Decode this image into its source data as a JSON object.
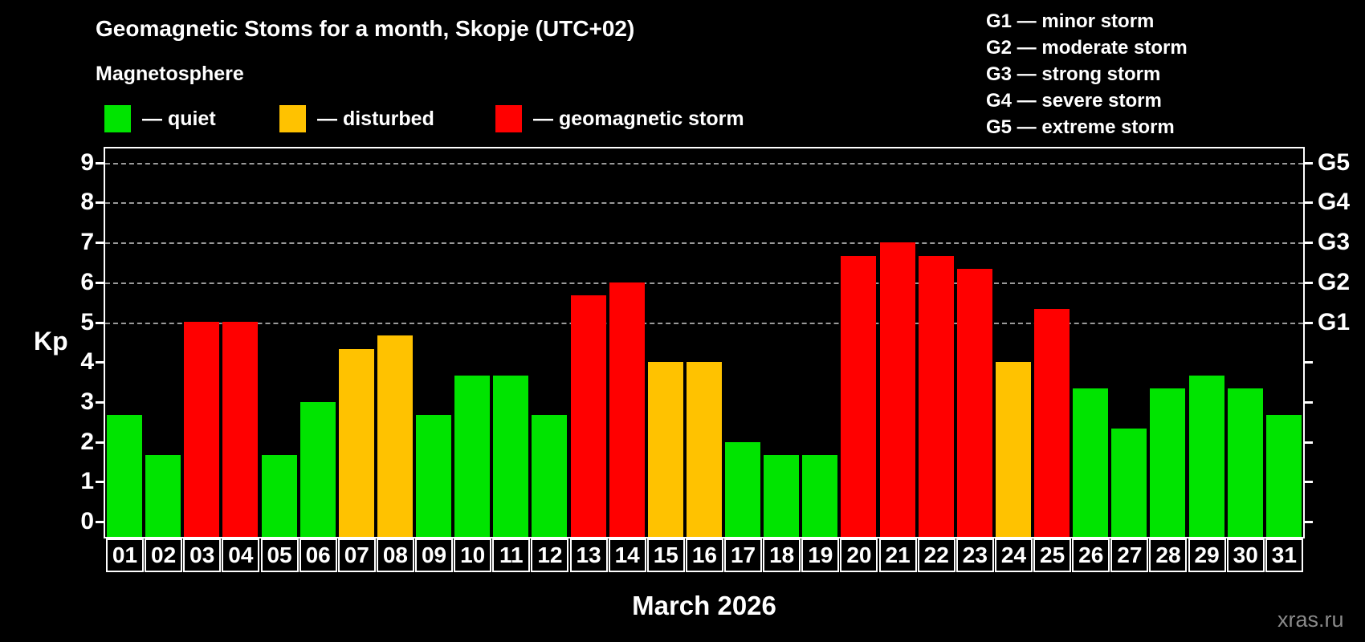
{
  "header": {
    "title": "Geomagnetic Stoms for a month, Skopje (UTC+02)",
    "subtitle": "Magnetosphere"
  },
  "legend": {
    "items": [
      {
        "name": "quiet",
        "label": "— quiet",
        "color": "#00e400"
      },
      {
        "name": "disturbed",
        "label": "— disturbed",
        "color": "#ffc200"
      },
      {
        "name": "storm",
        "label": "— geomagnetic storm",
        "color": "#ff0000"
      }
    ]
  },
  "g_scale_legend": {
    "items": [
      "G1 — minor storm",
      "G2 — moderate storm",
      "G3 — strong storm",
      "G4 — severe storm",
      "G5 — extreme storm"
    ]
  },
  "chart_data": {
    "type": "bar",
    "title": "Geomagnetic Stoms for a month, Skopje (UTC+02)",
    "xlabel": "March 2026",
    "ylabel": "Kp",
    "ylim": [
      0,
      9
    ],
    "grid": "horizontal dashed lines at Kp 5,6,7,8,9 only",
    "legend_position": "top-left",
    "categories": [
      "01",
      "02",
      "03",
      "04",
      "05",
      "06",
      "07",
      "08",
      "09",
      "10",
      "11",
      "12",
      "13",
      "14",
      "15",
      "16",
      "17",
      "18",
      "19",
      "20",
      "21",
      "22",
      "23",
      "24",
      "25",
      "26",
      "27",
      "28",
      "29",
      "30",
      "31"
    ],
    "values": [
      2.67,
      1.67,
      5.0,
      5.0,
      1.67,
      3.0,
      4.33,
      4.67,
      2.67,
      3.67,
      3.67,
      2.67,
      5.67,
      6.0,
      4.0,
      4.0,
      2.0,
      1.67,
      1.67,
      6.67,
      7.0,
      6.67,
      6.33,
      4.0,
      5.33,
      3.33,
      2.33,
      3.33,
      3.67,
      3.33,
      2.67
    ],
    "status": [
      "quiet",
      "quiet",
      "storm",
      "storm",
      "quiet",
      "quiet",
      "disturbed",
      "disturbed",
      "quiet",
      "quiet",
      "quiet",
      "quiet",
      "storm",
      "storm",
      "disturbed",
      "disturbed",
      "quiet",
      "quiet",
      "quiet",
      "storm",
      "storm",
      "storm",
      "storm",
      "disturbed",
      "storm",
      "quiet",
      "quiet",
      "quiet",
      "quiet",
      "quiet",
      "quiet"
    ],
    "colors": {
      "quiet": "#00e400",
      "disturbed": "#ffc200",
      "storm": "#ff0000"
    },
    "kp_axis_ticks": [
      0,
      1,
      2,
      3,
      4,
      5,
      6,
      7,
      8,
      9
    ],
    "right_axis": [
      {
        "kp": 5,
        "label": "G1"
      },
      {
        "kp": 6,
        "label": "G2"
      },
      {
        "kp": 7,
        "label": "G3"
      },
      {
        "kp": 8,
        "label": "G4"
      },
      {
        "kp": 9,
        "label": "G5"
      }
    ]
  },
  "footer": {
    "xlabel": "March 2026",
    "watermark": "xras.ru"
  }
}
